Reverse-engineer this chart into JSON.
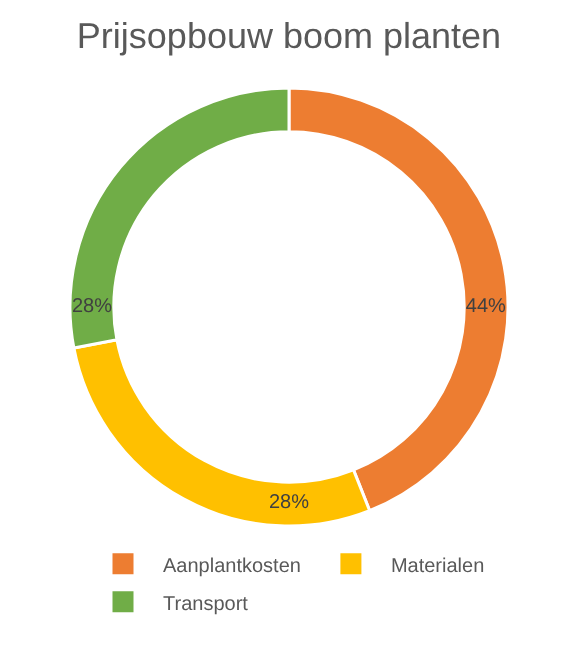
{
  "chart_data": {
    "type": "donut",
    "title": "Prijsopbouw boom planten",
    "categories": [
      "Aanplantkosten",
      "Materialen",
      "Transport"
    ],
    "values": [
      44,
      28,
      28
    ],
    "value_labels": [
      "44%",
      "28%",
      "28%"
    ],
    "colors": [
      "#ed7d31",
      "#ffc000",
      "#70ad47"
    ],
    "legend": "bottom"
  }
}
